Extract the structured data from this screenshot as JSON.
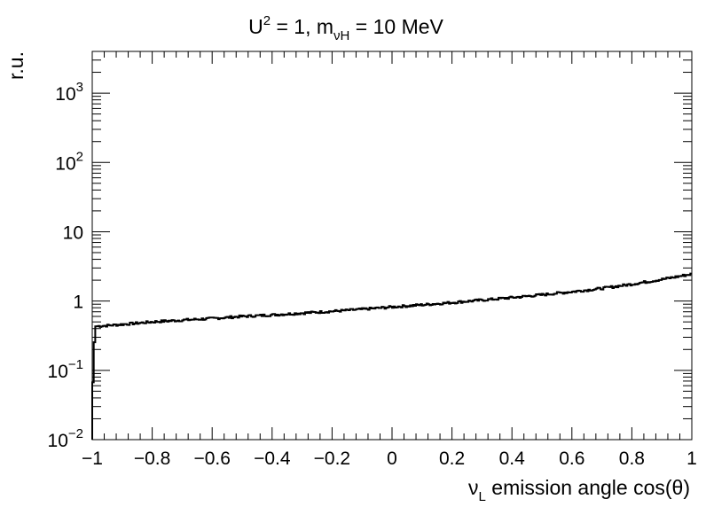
{
  "chart_data": {
    "type": "line",
    "title": {
      "main": "U",
      "sup": "2",
      "mid": " = 1, m",
      "sub": "νH",
      "end": " = 10 MeV"
    },
    "xlabel": {
      "main": "ν",
      "sub": "L",
      "rest": " emission angle cos(θ)"
    },
    "ylabel": "r.u.",
    "xlim": [
      -1,
      1
    ],
    "ylim": [
      0.01,
      4000
    ],
    "yscale": "log",
    "x_ticks": [
      {
        "value": -1,
        "label": "−1"
      },
      {
        "value": -0.8,
        "label": "−0.8"
      },
      {
        "value": -0.6,
        "label": "−0.6"
      },
      {
        "value": -0.4,
        "label": "−0.4"
      },
      {
        "value": -0.2,
        "label": "−0.2"
      },
      {
        "value": 0,
        "label": "0"
      },
      {
        "value": 0.2,
        "label": "0.2"
      },
      {
        "value": 0.4,
        "label": "0.4"
      },
      {
        "value": 0.6,
        "label": "0.6"
      },
      {
        "value": 0.8,
        "label": "0.8"
      },
      {
        "value": 1,
        "label": "1"
      }
    ],
    "y_ticks": [
      {
        "value": 0.01,
        "base": "10",
        "exp": "−2"
      },
      {
        "value": 0.1,
        "base": "10",
        "exp": "−1"
      },
      {
        "value": 1,
        "base": "1",
        "exp": ""
      },
      {
        "value": 10,
        "base": "10",
        "exp": ""
      },
      {
        "value": 100,
        "base": "10",
        "exp": "2"
      },
      {
        "value": 1000,
        "base": "10",
        "exp": "3"
      }
    ],
    "grid": false,
    "series": [
      {
        "color": "#000000",
        "x": [
          -1.0,
          -0.995,
          -0.99,
          -0.9,
          -0.8,
          -0.7,
          -0.6,
          -0.5,
          -0.4,
          -0.3,
          -0.2,
          -0.1,
          0.0,
          0.1,
          0.2,
          0.3,
          0.4,
          0.5,
          0.6,
          0.7,
          0.8,
          0.9,
          1.0
        ],
        "y": [
          0.03,
          0.15,
          0.43,
          0.46,
          0.5,
          0.53,
          0.56,
          0.6,
          0.63,
          0.67,
          0.71,
          0.76,
          0.82,
          0.88,
          0.95,
          1.03,
          1.12,
          1.23,
          1.36,
          1.52,
          1.75,
          2.05,
          2.45
        ]
      }
    ]
  }
}
